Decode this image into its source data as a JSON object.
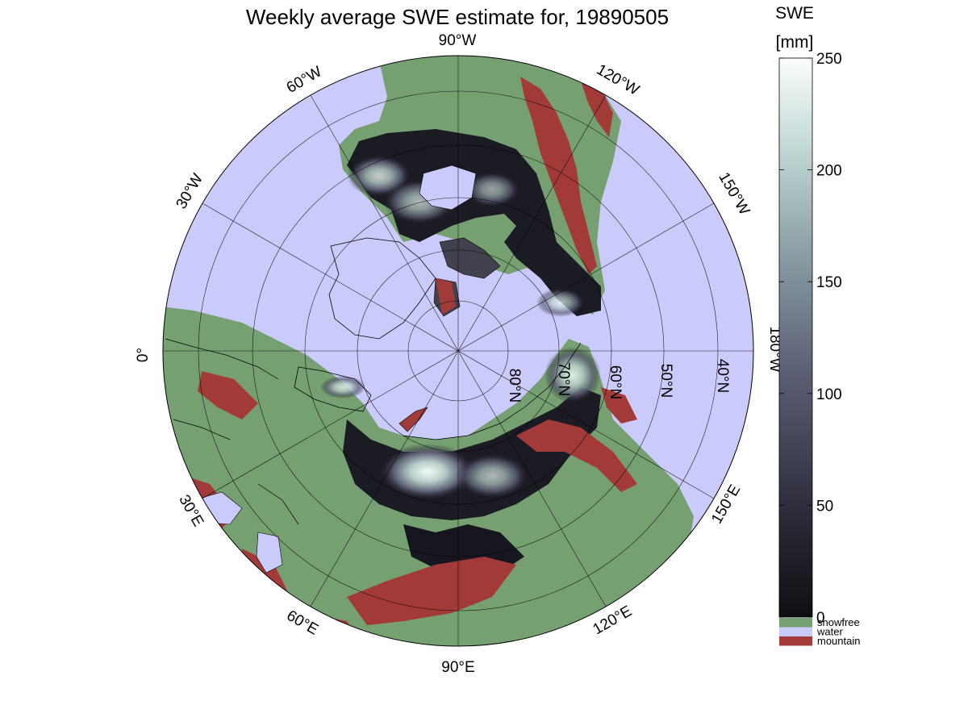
{
  "title": "Weekly average SWE estimate for, 19890505",
  "colors": {
    "water": "#cbcbfb",
    "snowfree": "#76a072",
    "mountain": "#a23a3a",
    "swe_low": "#101016",
    "swe_mid": "#565a70",
    "swe_high": "#f6fbf9",
    "coastline": "#000000",
    "graticule": "#000000"
  },
  "map": {
    "projection": "north polar stereographic",
    "longitude_labels": {
      "w90": "90°W",
      "w60": "60°W",
      "w120": "120°W",
      "w30": "30°W",
      "w150": "150°W",
      "lon0": "0°",
      "w180": "180°W",
      "e30": "30°E",
      "e150": "150°E",
      "e60": "60°E",
      "e120": "120°E",
      "e90": "90°E"
    },
    "latitude_labels": {
      "n80": "80°N",
      "n70": "70°N",
      "n60": "60°N",
      "n50": "50°N",
      "n40": "40°N"
    }
  },
  "colorbar": {
    "variable": "SWE",
    "unit": "[mm]",
    "ticks": [
      "250",
      "200",
      "150",
      "100",
      "50",
      "0"
    ],
    "range": [
      0,
      250
    ],
    "categories": [
      {
        "label": "snowfree",
        "color": "#76a072"
      },
      {
        "label": "water",
        "color": "#cbcbfb"
      },
      {
        "label": "mountain",
        "color": "#a23a3a"
      }
    ]
  }
}
